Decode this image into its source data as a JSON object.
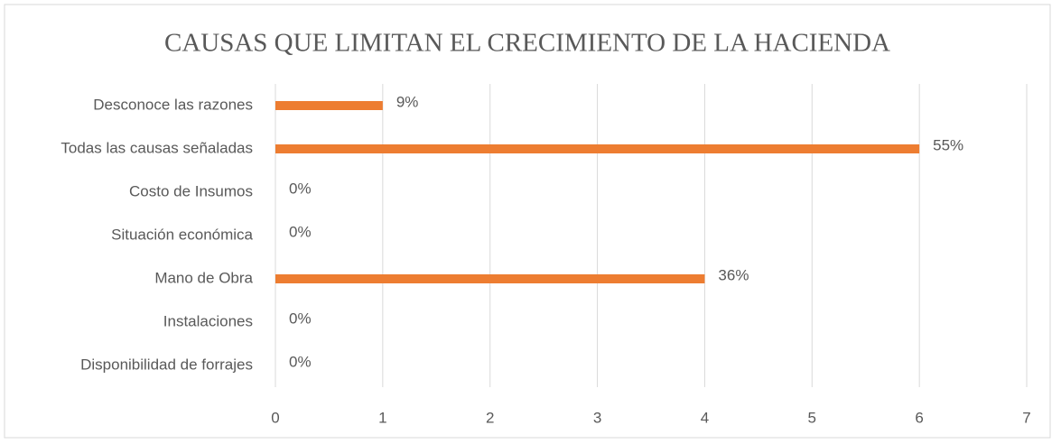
{
  "chart_data": {
    "type": "bar",
    "orientation": "horizontal",
    "title": "CAUSAS QUE LIMITAN EL CRECIMIENTO DE LA HACIENDA",
    "categories": [
      "Desconoce las razones",
      "Todas las causas señaladas",
      "Costo de Insumos",
      "Situación económica",
      "Mano de Obra",
      "Instalaciones",
      "Disponibilidad de forrajes"
    ],
    "values": [
      1,
      6,
      0,
      0,
      4,
      0,
      0
    ],
    "value_labels": [
      "9%",
      "55%",
      "0%",
      "0%",
      "36%",
      "0%",
      "0%"
    ],
    "color": "#ed7d31",
    "xlim": [
      0,
      7
    ],
    "xticks": [
      0,
      1,
      2,
      3,
      4,
      5,
      6,
      7
    ],
    "grid": true
  }
}
